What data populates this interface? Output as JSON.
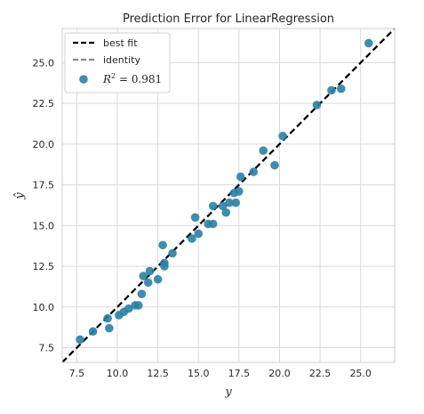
{
  "chart_data": {
    "type": "scatter",
    "title": "Prediction Error for LinearRegression",
    "xlabel": "y",
    "ylabel": "ŷ",
    "xlim": [
      6.6,
      27.1
    ],
    "ylim": [
      6.6,
      27.1
    ],
    "x_ticks": [
      7.5,
      10.0,
      12.5,
      15.0,
      17.5,
      20.0,
      22.5,
      25.0
    ],
    "y_ticks": [
      7.5,
      10.0,
      12.5,
      15.0,
      17.5,
      20.0,
      22.5,
      25.0
    ],
    "x_tick_labels": [
      "7.5",
      "10.0",
      "12.5",
      "15.0",
      "17.5",
      "20.0",
      "22.5",
      "25.0"
    ],
    "y_tick_labels": [
      "7.5",
      "10.0",
      "12.5",
      "15.0",
      "17.5",
      "20.0",
      "22.5",
      "25.0"
    ],
    "grid": true,
    "legend_position": "top-left",
    "legend": {
      "best_fit_label": "best fit",
      "identity_label": "identity",
      "r2_label": "R",
      "r2_sup": "2",
      "r2_value": " = 0.981"
    },
    "colors": {
      "points": "#2b7fa6",
      "best_fit": "#000000",
      "identity": "#8a8a8a",
      "grid": "#d9d9d9",
      "frame": "#cfcfcf"
    },
    "best_fit": {
      "slope": 1.0,
      "intercept": 0.0
    },
    "identity": {
      "slope": 1.0,
      "intercept": 0.0
    },
    "points": [
      {
        "x": 7.7,
        "y": 8.0
      },
      {
        "x": 8.5,
        "y": 8.5
      },
      {
        "x": 9.4,
        "y": 9.3
      },
      {
        "x": 9.5,
        "y": 8.7
      },
      {
        "x": 10.1,
        "y": 9.5
      },
      {
        "x": 10.4,
        "y": 9.7
      },
      {
        "x": 10.7,
        "y": 9.9
      },
      {
        "x": 11.1,
        "y": 10.1
      },
      {
        "x": 11.3,
        "y": 10.1
      },
      {
        "x": 11.5,
        "y": 10.8
      },
      {
        "x": 11.6,
        "y": 11.9
      },
      {
        "x": 11.9,
        "y": 11.5
      },
      {
        "x": 12.0,
        "y": 12.2
      },
      {
        "x": 12.5,
        "y": 11.7
      },
      {
        "x": 12.8,
        "y": 13.8
      },
      {
        "x": 12.9,
        "y": 12.5
      },
      {
        "x": 12.9,
        "y": 12.7
      },
      {
        "x": 13.4,
        "y": 13.3
      },
      {
        "x": 14.6,
        "y": 14.2
      },
      {
        "x": 14.8,
        "y": 15.5
      },
      {
        "x": 15.0,
        "y": 14.5
      },
      {
        "x": 15.6,
        "y": 15.1
      },
      {
        "x": 15.9,
        "y": 15.1
      },
      {
        "x": 15.9,
        "y": 16.2
      },
      {
        "x": 16.5,
        "y": 16.2
      },
      {
        "x": 16.7,
        "y": 15.8
      },
      {
        "x": 16.9,
        "y": 16.4
      },
      {
        "x": 17.2,
        "y": 17.0
      },
      {
        "x": 17.3,
        "y": 16.4
      },
      {
        "x": 17.5,
        "y": 17.1
      },
      {
        "x": 17.6,
        "y": 18.0
      },
      {
        "x": 18.4,
        "y": 18.3
      },
      {
        "x": 19.0,
        "y": 19.6
      },
      {
        "x": 19.7,
        "y": 18.7
      },
      {
        "x": 20.2,
        "y": 20.5
      },
      {
        "x": 22.3,
        "y": 22.4
      },
      {
        "x": 23.2,
        "y": 23.3
      },
      {
        "x": 23.8,
        "y": 23.4
      },
      {
        "x": 25.5,
        "y": 26.2
      }
    ]
  }
}
